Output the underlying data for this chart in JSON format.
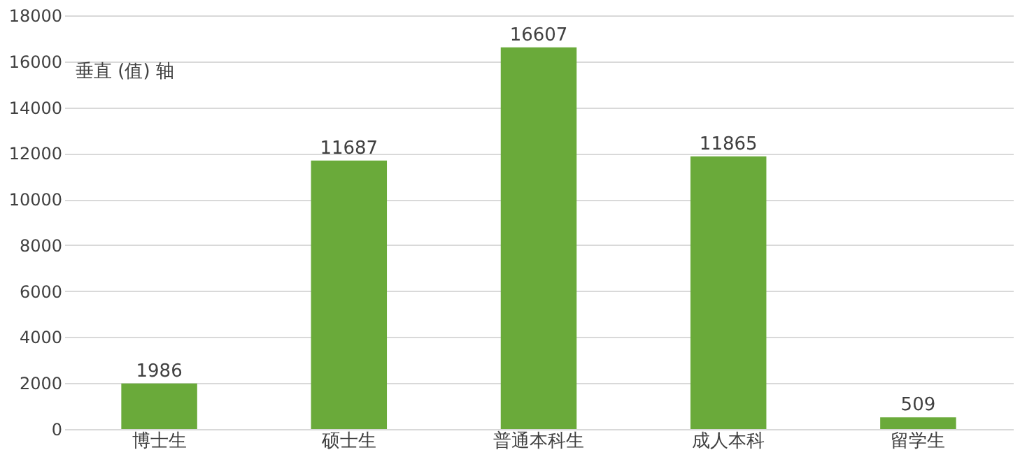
{
  "chart_data": {
    "type": "bar",
    "categories": [
      "博士生",
      "硕士生",
      "普通本科生",
      "成人本科",
      "留学生"
    ],
    "values": [
      1986,
      11687,
      16607,
      11865,
      509
    ],
    "color": "#6aaa3a",
    "ylim": [
      0,
      18000
    ],
    "yticks": [
      0,
      2000,
      4000,
      6000,
      8000,
      10000,
      12000,
      14000,
      16000,
      18000
    ],
    "grid": "y",
    "data_labels": true,
    "annotations": [
      "垂直 (值) 轴"
    ]
  }
}
